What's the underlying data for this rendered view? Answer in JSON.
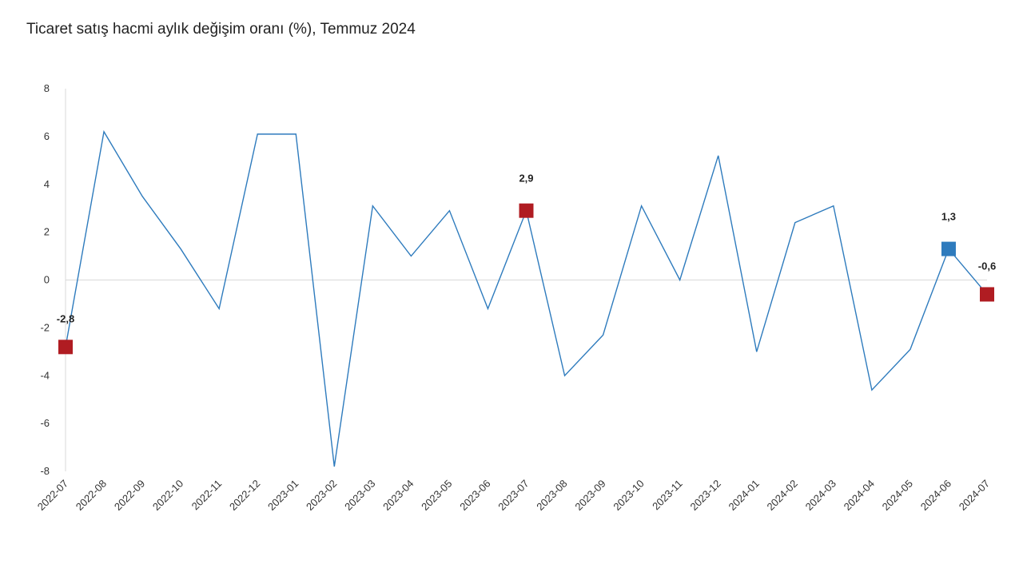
{
  "chart_data": {
    "type": "line",
    "title": "Ticaret satış hacmi aylık değişim oranı (%), Temmuz 2024",
    "xlabel": "",
    "ylabel": "",
    "ylim": [
      -8,
      8
    ],
    "yticks": [
      8,
      6,
      4,
      2,
      0,
      -2,
      -4,
      -6,
      -8
    ],
    "grid": false,
    "categories": [
      "2022-07",
      "2022-08",
      "2022-09",
      "2022-10",
      "2022-11",
      "2022-12",
      "2023-01",
      "2023-02",
      "2023-03",
      "2023-04",
      "2023-05",
      "2023-06",
      "2023-07",
      "2023-08",
      "2023-09",
      "2023-10",
      "2023-11",
      "2023-12",
      "2024-01",
      "2024-02",
      "2024-03",
      "2024-04",
      "2024-05",
      "2024-06",
      "2024-07"
    ],
    "series": [
      {
        "name": "Ticaret satış hacmi aylık değişim oranı (%)",
        "color": "#2e7bbd",
        "values": [
          -2.8,
          6.2,
          3.5,
          1.3,
          -1.2,
          6.1,
          6.1,
          -7.8,
          3.1,
          1.0,
          2.9,
          -1.2,
          2.9,
          -4.0,
          -2.3,
          3.1,
          0.0,
          5.2,
          -3.0,
          2.4,
          3.1,
          -4.6,
          -2.9,
          1.3,
          -0.6
        ]
      }
    ],
    "highlighted_points": [
      {
        "category": "2022-07",
        "label": "-2,8",
        "color": "#b01c22"
      },
      {
        "category": "2023-07",
        "label": "2,9",
        "color": "#b01c22"
      },
      {
        "category": "2024-06",
        "label": "1,3",
        "color": "#2e7bbd"
      },
      {
        "category": "2024-07",
        "label": "-0,6",
        "color": "#b01c22"
      }
    ]
  }
}
